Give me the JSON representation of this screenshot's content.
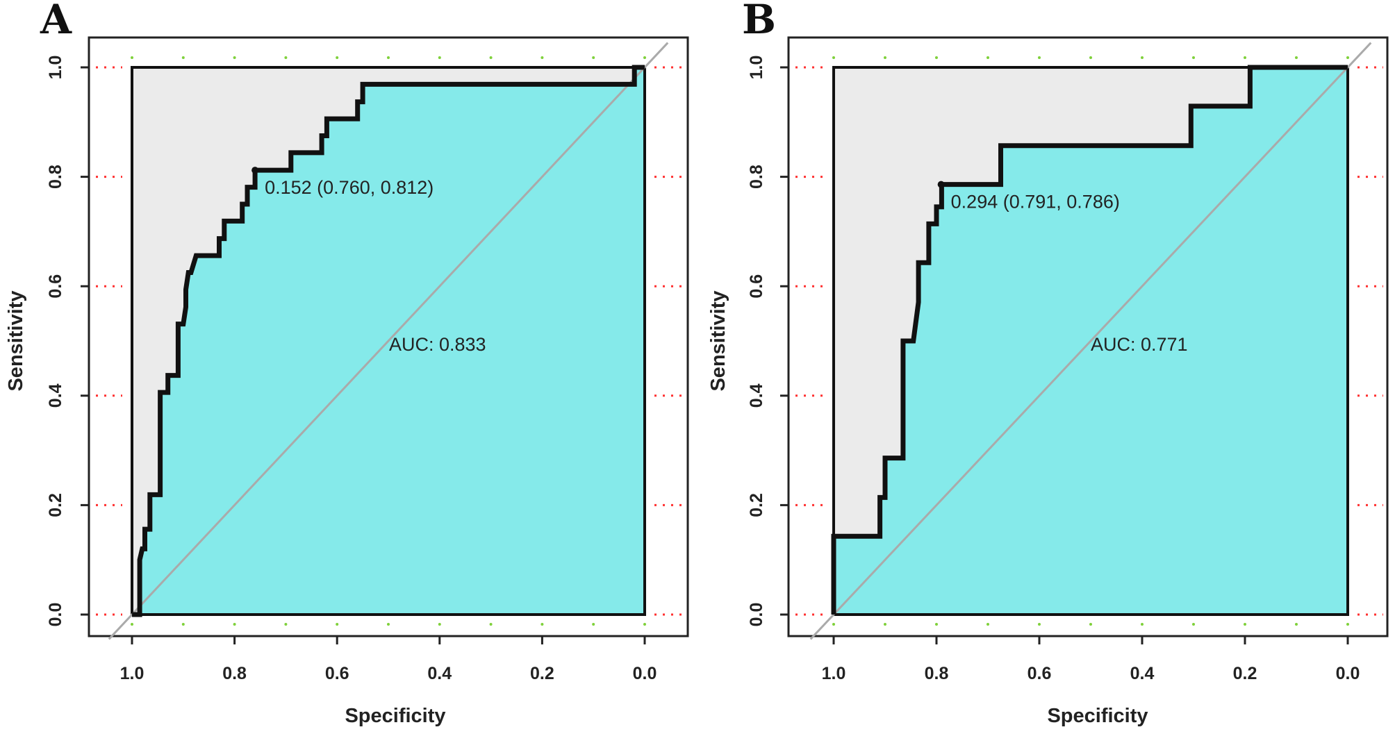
{
  "chart_data": [
    {
      "panel_label": "A",
      "type": "line",
      "subtype": "roc",
      "xlabel": "Specificity",
      "ylabel": "Sensitivity",
      "xlim": [
        1.0,
        0.0
      ],
      "ylim": [
        0.0,
        1.0
      ],
      "x_ticks": [
        "1.0",
        "0.8",
        "0.6",
        "0.4",
        "0.2",
        "0.0"
      ],
      "y_ticks": [
        "0.0",
        "0.2",
        "0.4",
        "0.6",
        "0.8",
        "1.0"
      ],
      "grid": "dotted",
      "auc_label": "AUC: 0.833",
      "best_threshold": {
        "specificity": 0.76,
        "sensitivity": 0.812,
        "label": "0.152 (0.760, 0.812)"
      },
      "curve": {
        "specificity": [
          1.0,
          0.985,
          0.985,
          0.98,
          0.975,
          0.975,
          0.965,
          0.965,
          0.945,
          0.945,
          0.93,
          0.93,
          0.91,
          0.91,
          0.9,
          0.895,
          0.895,
          0.89,
          0.885,
          0.875,
          0.875,
          0.83,
          0.83,
          0.82,
          0.82,
          0.785,
          0.785,
          0.775,
          0.775,
          0.76,
          0.76,
          0.69,
          0.69,
          0.63,
          0.63,
          0.62,
          0.62,
          0.56,
          0.56,
          0.55,
          0.55,
          0.03,
          0.03,
          0.02,
          0.02,
          0.0
        ],
        "sensitivity": [
          0.0,
          0.0,
          0.1,
          0.12,
          0.12,
          0.156,
          0.156,
          0.219,
          0.219,
          0.406,
          0.406,
          0.437,
          0.437,
          0.531,
          0.531,
          0.562,
          0.594,
          0.625,
          0.625,
          0.656,
          0.656,
          0.656,
          0.687,
          0.687,
          0.719,
          0.719,
          0.75,
          0.75,
          0.781,
          0.781,
          0.812,
          0.812,
          0.844,
          0.844,
          0.875,
          0.875,
          0.906,
          0.906,
          0.937,
          0.937,
          0.969,
          0.969,
          0.969,
          0.969,
          1.0,
          1.0
        ]
      },
      "colors": {
        "auc_fill": "#85eaea",
        "background": "#ebebeb",
        "curve": "#111111",
        "diagonal": "#aaaaaa",
        "grid_y": "#ff3030",
        "grid_x": "#7fd13b"
      }
    },
    {
      "panel_label": "B",
      "type": "line",
      "subtype": "roc",
      "xlabel": "Specificity",
      "ylabel": "Sensitivity",
      "xlim": [
        1.0,
        0.0
      ],
      "ylim": [
        0.0,
        1.0
      ],
      "x_ticks": [
        "1.0",
        "0.8",
        "0.6",
        "0.4",
        "0.2",
        "0.0"
      ],
      "y_ticks": [
        "0.0",
        "0.2",
        "0.4",
        "0.6",
        "0.8",
        "1.0"
      ],
      "grid": "dotted",
      "auc_label": "AUC: 0.771",
      "best_threshold": {
        "specificity": 0.791,
        "sensitivity": 0.786,
        "label": "0.294 (0.791, 0.786)"
      },
      "curve": {
        "specificity": [
          1.0,
          1.0,
          0.91,
          0.91,
          0.9,
          0.9,
          0.865,
          0.865,
          0.845,
          0.835,
          0.835,
          0.815,
          0.815,
          0.8,
          0.8,
          0.79,
          0.79,
          0.675,
          0.675,
          0.305,
          0.305,
          0.19,
          0.19,
          0.0
        ],
        "sensitivity": [
          0.0,
          0.143,
          0.143,
          0.214,
          0.214,
          0.286,
          0.286,
          0.5,
          0.5,
          0.571,
          0.643,
          0.643,
          0.714,
          0.714,
          0.745,
          0.745,
          0.786,
          0.786,
          0.857,
          0.857,
          0.929,
          0.929,
          1.0,
          1.0
        ]
      },
      "colors": {
        "auc_fill": "#85eaea",
        "background": "#ebebeb",
        "curve": "#111111",
        "diagonal": "#aaaaaa",
        "grid_y": "#ff3030",
        "grid_x": "#7fd13b"
      }
    }
  ]
}
